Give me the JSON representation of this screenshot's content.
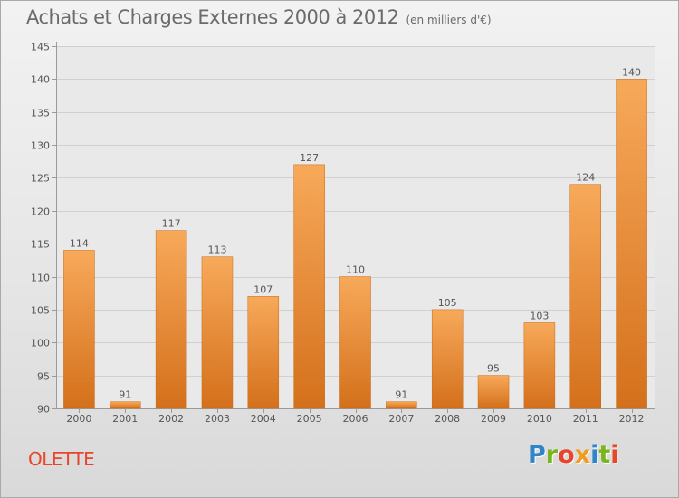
{
  "header": {
    "title": "Achats et Charges Externes 2000 à 2012",
    "unit_note": "(en milliers d'€)"
  },
  "footer": {
    "place": "OLETTE",
    "logo_letters": [
      "P",
      "r",
      "o",
      "x",
      "i",
      "t",
      "i"
    ],
    "logo_colors": [
      "#2e86c8",
      "#7ab51d",
      "#e8452a",
      "#f29a1d",
      "#2e86c8",
      "#7ab51d",
      "#e8452a"
    ]
  },
  "chart_data": {
    "type": "bar",
    "categories": [
      "2000",
      "2001",
      "2002",
      "2003",
      "2004",
      "2005",
      "2006",
      "2007",
      "2008",
      "2009",
      "2010",
      "2011",
      "2012"
    ],
    "values": [
      114,
      91,
      117,
      113,
      107,
      127,
      110,
      91,
      105,
      95,
      103,
      124,
      140
    ],
    "ylim": [
      90,
      145
    ],
    "yticks": [
      90,
      95,
      100,
      105,
      110,
      115,
      120,
      125,
      130,
      135,
      140,
      145
    ],
    "grid": true,
    "bar_color": "#f0882c"
  }
}
